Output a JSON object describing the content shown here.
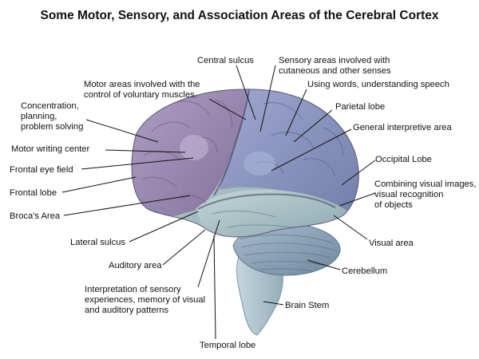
{
  "title": "Some Motor, Sensory, and Association Areas of the Cerebral Cortex",
  "colors": {
    "frontal": "#9a86b0",
    "parietal": "#8a96be",
    "temporal": "#a7c2c6",
    "cerebellum": "#8fa6bc",
    "brainstem": "#b2c8d2",
    "gyri_highlight": "#b9a9cc"
  },
  "labels": {
    "central_sulcus": "Central sulcus",
    "sensory_areas": [
      "Sensory areas involved with",
      "cutaneous and other senses"
    ],
    "motor_areas": [
      "Motor areas involved with the",
      "control of voluntary muscles."
    ],
    "using_words": "Using words, understanding speech",
    "concentration": [
      "Concentration,",
      "planning,",
      "problem solving"
    ],
    "parietal_lobe": "Parietal lobe",
    "general_interpretive": "General interpretive area",
    "motor_writing": "Motor writing center",
    "occipital_lobe": "Occipital Lobe",
    "frontal_eye_field": "Frontal eye field",
    "combining_visual": [
      "Combining visual images,",
      "visual recognition",
      "of objects"
    ],
    "frontal_lobe": "Frontal lobe",
    "brocas_area": "Broca's Area",
    "visual_area": "Visual area",
    "lateral_sulcus": "Lateral sulcus",
    "cerebellum": "Cerebellum",
    "auditory_area": "Auditory area",
    "interpretation": [
      "Interpretation of sensory",
      "experiences, memory of visual",
      "and auditory patterns"
    ],
    "brain_stem": "Brain Stem",
    "temporal_lobe": "Temporal lobe"
  }
}
